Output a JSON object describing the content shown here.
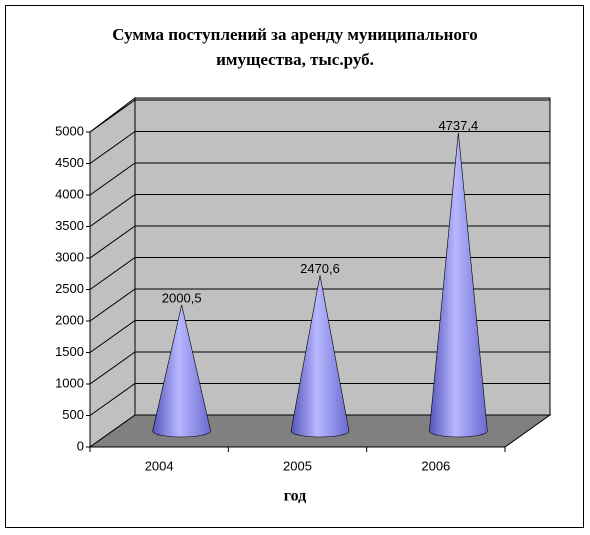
{
  "chart_data": {
    "type": "cone3d",
    "title": "Сумма поступлений за аренду муниципального имущества, тыс.руб.",
    "x_label": "год",
    "categories": [
      "2004",
      "2005",
      "2006"
    ],
    "values": [
      2000.5,
      2470.6,
      4737.4
    ],
    "value_labels": [
      "2000,5",
      "2470,6",
      "4737,4"
    ],
    "color": "#8080f0",
    "ylim": [
      0,
      5000
    ],
    "yticks": [
      0,
      500,
      1000,
      1500,
      2000,
      2500,
      3000,
      3500,
      4000,
      4500,
      5000
    ],
    "grid": true
  }
}
